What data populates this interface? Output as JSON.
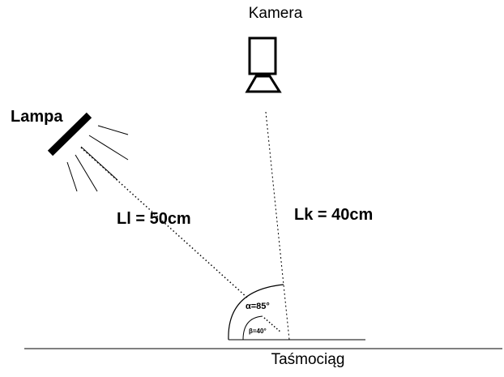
{
  "labels": {
    "camera": "Kamera",
    "lamp": "Lampa",
    "lamp_distance": "Ll = 50cm",
    "camera_distance": "Lk = 40cm",
    "belt": "Taśmociąg",
    "alpha": "α=85°",
    "beta": "β=40°"
  },
  "icons": {
    "camera": "camera-icon",
    "lamp": "lamp-icon"
  },
  "colors": {
    "ink": "#000000",
    "background": "#ffffff"
  }
}
